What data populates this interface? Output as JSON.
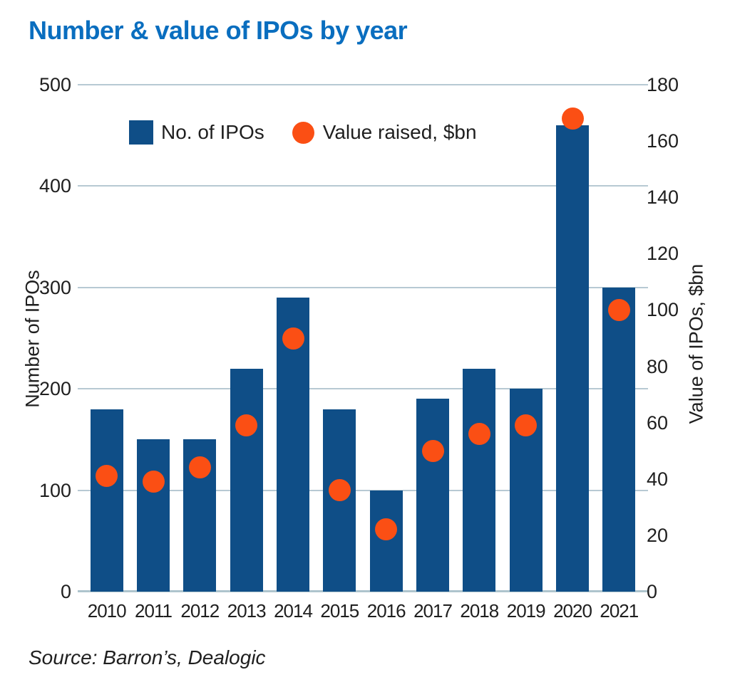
{
  "title": "Number & value of IPOs by year",
  "source": "Source: Barron’s, Dealogic",
  "colors": {
    "title": "#0a6ebf",
    "bar": "#0f4e87",
    "dot": "#fb4f14",
    "grid": "#b7c9d3",
    "baseline": "#aec4cd",
    "text": "#1f1f1f"
  },
  "legend": {
    "items": [
      {
        "label": "No. of IPOs",
        "marker": "square"
      },
      {
        "label": "Value raised, $bn",
        "marker": "circle"
      }
    ]
  },
  "chart_data": {
    "type": "bar",
    "categories": [
      "2010",
      "2011",
      "2012",
      "2013",
      "2014",
      "2015",
      "2016",
      "2017",
      "2018",
      "2019",
      "2020",
      "2021"
    ],
    "series": [
      {
        "name": "No. of IPOs",
        "type": "bar",
        "axis": "left",
        "values": [
          180,
          150,
          150,
          220,
          290,
          180,
          100,
          190,
          220,
          200,
          460,
          300
        ]
      },
      {
        "name": "Value raised, $bn",
        "type": "scatter",
        "axis": "right",
        "values": [
          41,
          39,
          44,
          59,
          90,
          36,
          22,
          50,
          56,
          59,
          168,
          100
        ]
      }
    ],
    "title": "Number & value of IPOs by year",
    "xlabel": "",
    "left_axis": {
      "label": "Number of IPOs",
      "min": 0,
      "max": 500,
      "tick_step": 100
    },
    "right_axis": {
      "label": "Value of IPOs, $bn",
      "min": 0,
      "max": 180,
      "tick_step": 20
    },
    "grid": true,
    "legend_position": "inside-top-left"
  }
}
